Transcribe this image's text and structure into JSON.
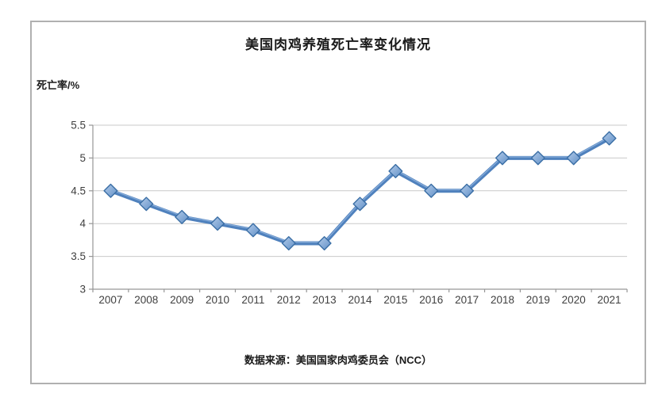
{
  "chart_data": {
    "type": "line",
    "title": "美国肉鸡养殖死亡率变化情况",
    "ylabel": "死亡率/%",
    "xlabel": "",
    "source_note": "数据来源：美国国家肉鸡委员会（NCC）",
    "categories": [
      "2007",
      "2008",
      "2009",
      "2010",
      "2011",
      "2012",
      "2013",
      "2014",
      "2015",
      "2016",
      "2017",
      "2018",
      "2019",
      "2020",
      "2021"
    ],
    "values": [
      4.5,
      4.3,
      4.1,
      4.0,
      3.9,
      3.7,
      3.7,
      4.3,
      4.8,
      4.5,
      4.5,
      5.0,
      5.0,
      5.0,
      5.3
    ],
    "ylim": [
      3,
      5.5
    ],
    "y_ticks": [
      3,
      3.5,
      4,
      4.5,
      5,
      5.5
    ],
    "grid": true,
    "legend_position": "none",
    "marker": "diamond",
    "colors": {
      "line": "#4f81bd",
      "line_highlight": "#8cb0dc",
      "marker_fill_light": "#b3cbe9",
      "marker_fill_dark": "#6190c7",
      "marker_stroke": "#3a6ea5",
      "gridline": "#c9c9c9",
      "axis": "#969696",
      "tick_text": "#3f3f3f",
      "title_text": "#1a1a1a",
      "border": "#b0b0b0"
    }
  }
}
